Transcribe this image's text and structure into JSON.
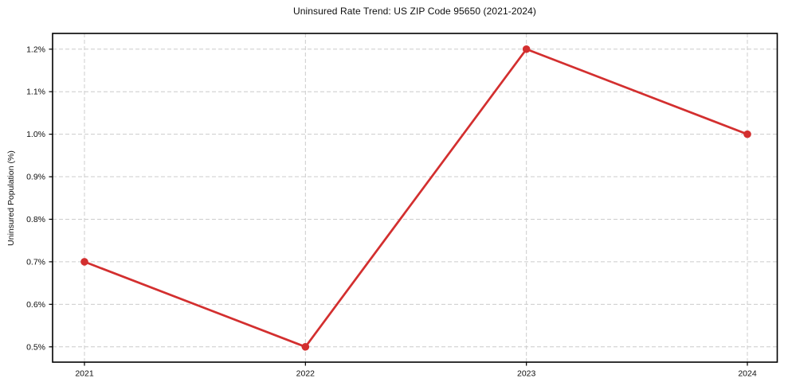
{
  "chart_data": {
    "type": "line",
    "title": "Uninsured Rate Trend: US ZIP Code 95650 (2021-2024)",
    "xlabel": "",
    "ylabel": "Uninsured Population (%)",
    "categories": [
      "2021",
      "2022",
      "2023",
      "2024"
    ],
    "series": [
      {
        "name": "Uninsured rate",
        "values": [
          0.7,
          0.5,
          1.2,
          1.0
        ],
        "color": "#d32f2f",
        "marker": "circle"
      }
    ],
    "yticks": {
      "values": [
        0.5,
        0.6,
        0.7,
        0.8,
        0.9,
        1.0,
        1.1,
        1.2
      ],
      "labels": [
        "0.5%",
        "0.6%",
        "0.7%",
        "0.8%",
        "0.9%",
        "1.0%",
        "1.1%",
        "1.2%"
      ]
    },
    "ylim": [
      0.464,
      1.237
    ],
    "grid": "dashed",
    "grid_color": "#cccccc",
    "axis_color": "#000000",
    "background": "#ffffff",
    "legend": "none"
  }
}
